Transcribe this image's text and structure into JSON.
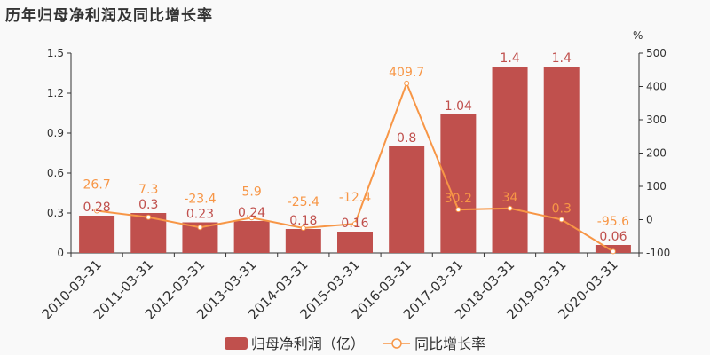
{
  "title": "历年归母净利润及同比增长率",
  "chart_data": {
    "type": "bar+line",
    "title": "历年归母净利润及同比增长率",
    "categories": [
      "2010-03-31",
      "2011-03-31",
      "2012-03-31",
      "2013-03-31",
      "2014-03-31",
      "2015-03-31",
      "2016-03-31",
      "2017-03-31",
      "2018-03-31",
      "2019-03-31",
      "2020-03-31"
    ],
    "series": [
      {
        "name": "归母净利润（亿）",
        "type": "bar",
        "axis": "left",
        "color": "#c0504d",
        "values": [
          0.28,
          0.3,
          0.23,
          0.24,
          0.18,
          0.16,
          0.8,
          1.04,
          1.4,
          1.4,
          0.06
        ]
      },
      {
        "name": "同比增长率",
        "type": "line",
        "axis": "right",
        "color": "#f79646",
        "values": [
          26.7,
          7.3,
          -23.4,
          5.9,
          -25.4,
          -12.4,
          409.7,
          30.2,
          34,
          0.3,
          -95.6
        ]
      }
    ],
    "y_left": {
      "range": [
        0,
        1.5
      ],
      "ticks": [
        0,
        0.3,
        0.6,
        0.9,
        1.2,
        1.5
      ]
    },
    "y_right": {
      "label": "%",
      "range": [
        -100,
        500
      ],
      "ticks": [
        -100,
        0,
        100,
        200,
        300,
        400,
        500
      ]
    },
    "legend": "bottom",
    "grid": false
  }
}
